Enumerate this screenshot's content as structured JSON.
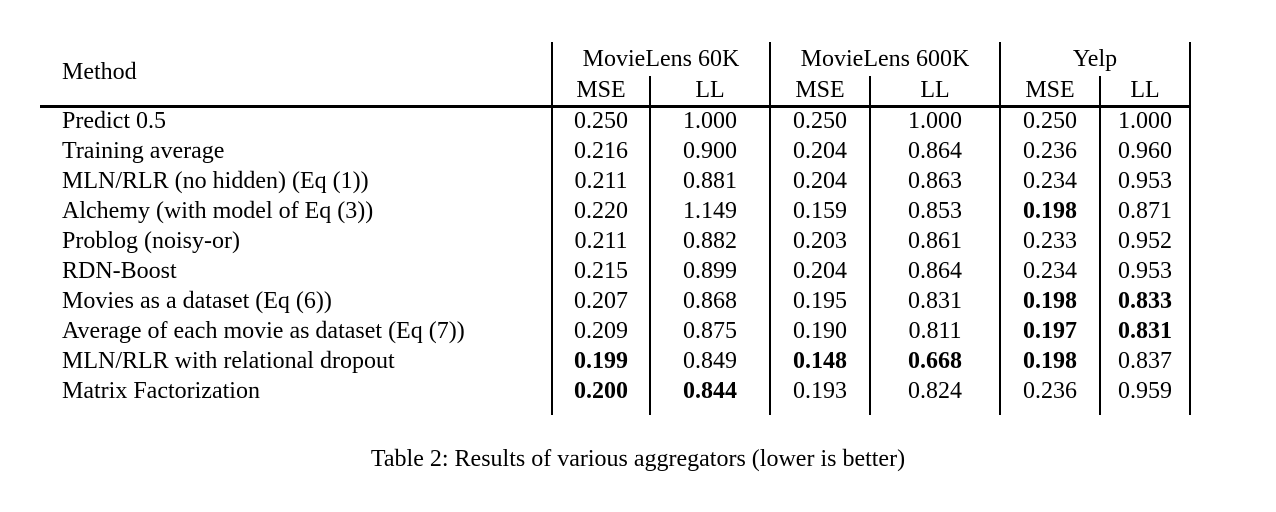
{
  "page": {
    "caption": "Table 2: Results of various aggregators (lower is better)"
  },
  "colors": {
    "text": "#000000",
    "background": "#ffffff",
    "rule": "#000000"
  },
  "table": {
    "method_header": "Method",
    "groups": [
      {
        "label": "MovieLens 60K",
        "cols": [
          "MSE",
          "LL"
        ]
      },
      {
        "label": "MovieLens 600K",
        "cols": [
          "MSE",
          "LL"
        ]
      },
      {
        "label": "Yelp",
        "cols": [
          "MSE",
          "LL"
        ]
      }
    ],
    "rows": [
      {
        "method": "Predict 0.5",
        "values": [
          "0.250",
          "1.000",
          "0.250",
          "1.000",
          "0.250",
          "1.000"
        ],
        "bold": [
          false,
          false,
          false,
          false,
          false,
          false
        ]
      },
      {
        "method": "Training average",
        "values": [
          "0.216",
          "0.900",
          "0.204",
          "0.864",
          "0.236",
          "0.960"
        ],
        "bold": [
          false,
          false,
          false,
          false,
          false,
          false
        ]
      },
      {
        "method": "MLN/RLR (no hidden) (Eq (1))",
        "values": [
          "0.211",
          "0.881",
          "0.204",
          "0.863",
          "0.234",
          "0.953"
        ],
        "bold": [
          false,
          false,
          false,
          false,
          false,
          false
        ]
      },
      {
        "method": "Alchemy (with model of Eq (3))",
        "values": [
          "0.220",
          "1.149",
          "0.159",
          "0.853",
          "0.198",
          "0.871"
        ],
        "bold": [
          false,
          false,
          false,
          false,
          true,
          false
        ]
      },
      {
        "method": "Problog (noisy-or)",
        "values": [
          "0.211",
          "0.882",
          "0.203",
          "0.861",
          "0.233",
          "0.952"
        ],
        "bold": [
          false,
          false,
          false,
          false,
          false,
          false
        ]
      },
      {
        "method": "RDN-Boost",
        "values": [
          "0.215",
          "0.899",
          "0.204",
          "0.864",
          "0.234",
          "0.953"
        ],
        "bold": [
          false,
          false,
          false,
          false,
          false,
          false
        ]
      },
      {
        "method": "Movies as a dataset (Eq (6))",
        "values": [
          "0.207",
          "0.868",
          "0.195",
          "0.831",
          "0.198",
          "0.833"
        ],
        "bold": [
          false,
          false,
          false,
          false,
          true,
          true
        ]
      },
      {
        "method": "Average of each movie as dataset (Eq (7))",
        "values": [
          "0.209",
          "0.875",
          "0.190",
          "0.811",
          "0.197",
          "0.831"
        ],
        "bold": [
          false,
          false,
          false,
          false,
          true,
          true
        ]
      },
      {
        "method": "MLN/RLR with relational dropout",
        "values": [
          "0.199",
          "0.849",
          "0.148",
          "0.668",
          "0.198",
          "0.837"
        ],
        "bold": [
          true,
          false,
          true,
          true,
          true,
          false
        ]
      },
      {
        "method": "Matrix Factorization",
        "values": [
          "0.200",
          "0.844",
          "0.193",
          "0.824",
          "0.236",
          "0.959"
        ],
        "bold": [
          true,
          true,
          false,
          false,
          false,
          false
        ]
      }
    ]
  },
  "chart_data": {
    "type": "table",
    "title": "Table 2: Results of various aggregators (lower is better)",
    "columns": [
      "Method",
      "MovieLens 60K MSE",
      "MovieLens 60K LL",
      "MovieLens 600K MSE",
      "MovieLens 600K LL",
      "Yelp MSE",
      "Yelp LL"
    ],
    "rows": [
      [
        "Predict 0.5",
        0.25,
        1.0,
        0.25,
        1.0,
        0.25,
        1.0
      ],
      [
        "Training average",
        0.216,
        0.9,
        0.204,
        0.864,
        0.236,
        0.96
      ],
      [
        "MLN/RLR (no hidden) (Eq (1))",
        0.211,
        0.881,
        0.204,
        0.863,
        0.234,
        0.953
      ],
      [
        "Alchemy (with model of Eq (3))",
        0.22,
        1.149,
        0.159,
        0.853,
        0.198,
        0.871
      ],
      [
        "Problog (noisy-or)",
        0.211,
        0.882,
        0.203,
        0.861,
        0.233,
        0.952
      ],
      [
        "RDN-Boost",
        0.215,
        0.899,
        0.204,
        0.864,
        0.234,
        0.953
      ],
      [
        "Movies as a dataset (Eq (6))",
        0.207,
        0.868,
        0.195,
        0.831,
        0.198,
        0.833
      ],
      [
        "Average of each movie as dataset (Eq (7))",
        0.209,
        0.875,
        0.19,
        0.811,
        0.197,
        0.831
      ],
      [
        "MLN/RLR with relational dropout",
        0.199,
        0.849,
        0.148,
        0.668,
        0.198,
        0.837
      ],
      [
        "Matrix Factorization",
        0.2,
        0.844,
        0.193,
        0.824,
        0.236,
        0.959
      ]
    ]
  }
}
